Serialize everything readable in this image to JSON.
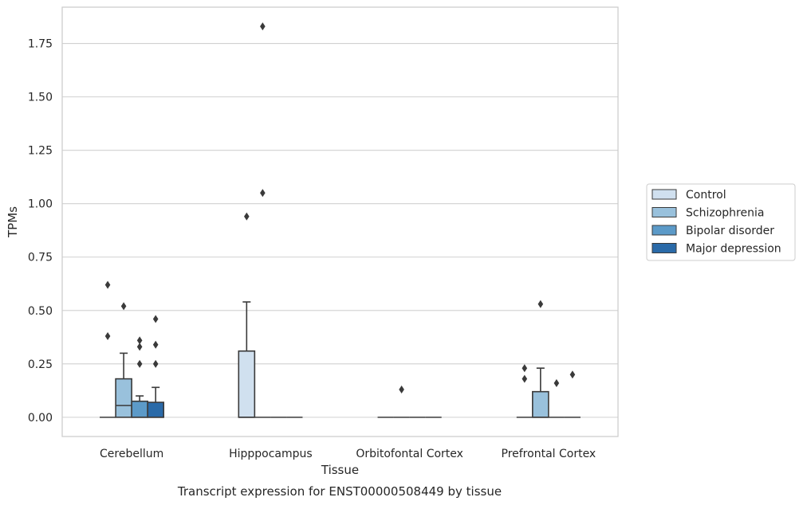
{
  "chart_data": {
    "type": "box",
    "title": "Transcript expression for ENST00000508449 by tissue",
    "xlabel": "Tissue",
    "ylabel": "TPMs",
    "ylim": [
      -0.09,
      1.92
    ],
    "yticks": [
      "0.00",
      "0.25",
      "0.50",
      "0.75",
      "1.00",
      "1.25",
      "1.50",
      "1.75"
    ],
    "grid": "horizontal",
    "legend_position": "right",
    "categories": [
      "Cerebellum",
      "Hipppocampus",
      "Orbitofontal Cortex",
      "Prefrontal Cortex"
    ],
    "series": [
      {
        "name": "Control",
        "color": "#d0e0ef",
        "boxes": [
          {
            "q1": 0,
            "median": 0,
            "q3": 0,
            "whisker_low": 0,
            "whisker_high": 0,
            "outliers": [
              0.62,
              0.38
            ]
          },
          {
            "q1": 0,
            "median": 0,
            "q3": 0.31,
            "whisker_low": 0,
            "whisker_high": 0.54,
            "outliers": [
              0.94
            ]
          },
          {
            "q1": 0,
            "median": 0,
            "q3": 0,
            "whisker_low": 0,
            "whisker_high": 0,
            "outliers": []
          },
          {
            "q1": 0,
            "median": 0,
            "q3": 0,
            "whisker_low": 0,
            "whisker_high": 0,
            "outliers": [
              0.23,
              0.18
            ]
          }
        ]
      },
      {
        "name": "Schizophrenia",
        "color": "#99c1dc",
        "boxes": [
          {
            "q1": 0,
            "median": 0.055,
            "q3": 0.18,
            "whisker_low": 0,
            "whisker_high": 0.3,
            "outliers": [
              0.52
            ]
          },
          {
            "q1": 0,
            "median": 0,
            "q3": 0,
            "whisker_low": 0,
            "whisker_high": 0,
            "outliers": [
              1.83,
              1.05
            ]
          },
          {
            "q1": 0,
            "median": 0,
            "q3": 0,
            "whisker_low": 0,
            "whisker_high": 0,
            "outliers": [
              0.13
            ]
          },
          {
            "q1": 0,
            "median": 0,
            "q3": 0.12,
            "whisker_low": 0,
            "whisker_high": 0.23,
            "outliers": [
              0.53
            ]
          }
        ]
      },
      {
        "name": "Bipolar disorder",
        "color": "#5c9ac8",
        "boxes": [
          {
            "q1": 0,
            "median": 0,
            "q3": 0.075,
            "whisker_low": 0,
            "whisker_high": 0.1,
            "outliers": [
              0.36,
              0.33,
              0.25
            ]
          },
          {
            "q1": 0,
            "median": 0,
            "q3": 0,
            "whisker_low": 0,
            "whisker_high": 0,
            "outliers": []
          },
          {
            "q1": 0,
            "median": 0,
            "q3": 0,
            "whisker_low": 0,
            "whisker_high": 0,
            "outliers": []
          },
          {
            "q1": 0,
            "median": 0,
            "q3": 0,
            "whisker_low": 0,
            "whisker_high": 0,
            "outliers": [
              0.16
            ]
          }
        ]
      },
      {
        "name": "Major depression",
        "color": "#2a6aa8",
        "boxes": [
          {
            "q1": 0,
            "median": 0,
            "q3": 0.07,
            "whisker_low": 0,
            "whisker_high": 0.14,
            "outliers": [
              0.46,
              0.34,
              0.25
            ]
          },
          {
            "q1": 0,
            "median": 0,
            "q3": 0,
            "whisker_low": 0,
            "whisker_high": 0,
            "outliers": []
          },
          {
            "q1": 0,
            "median": 0,
            "q3": 0,
            "whisker_low": 0,
            "whisker_high": 0,
            "outliers": []
          },
          {
            "q1": 0,
            "median": 0,
            "q3": 0,
            "whisker_low": 0,
            "whisker_high": 0,
            "outliers": [
              0.2
            ]
          }
        ]
      }
    ]
  }
}
